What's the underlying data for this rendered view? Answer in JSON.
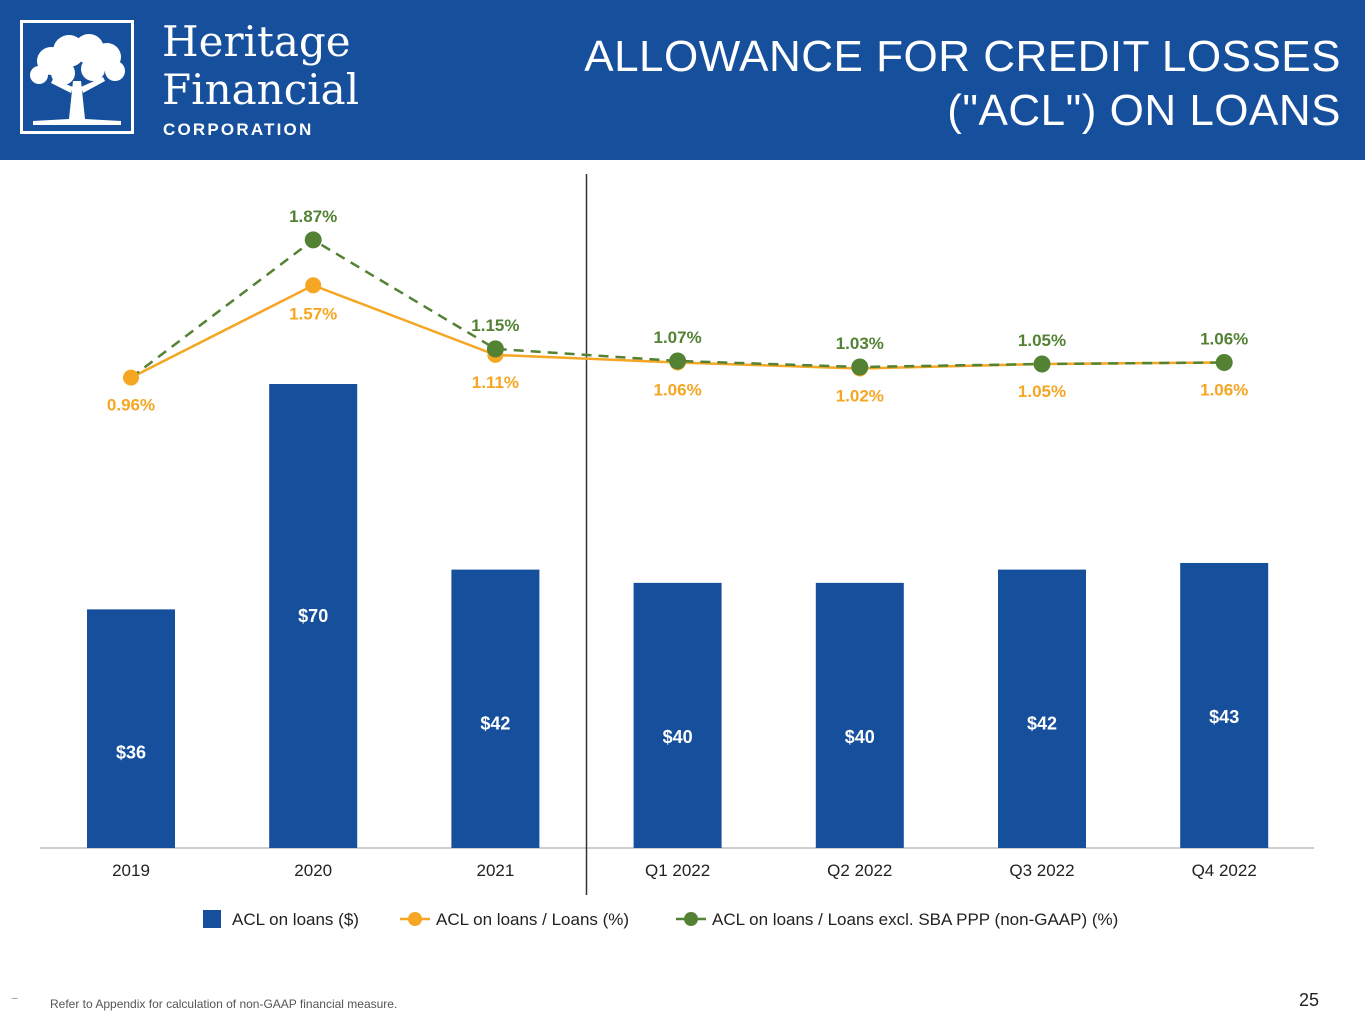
{
  "header": {
    "logo_line1": "Heritage",
    "logo_line2": "Financial",
    "logo_line3": "CORPORATION",
    "title": "ALLOWANCE FOR CREDIT LOSSES (\"ACL\") ON LOANS",
    "background_color": "#164f9c"
  },
  "chart_data": {
    "type": "bar",
    "title": "",
    "categories": [
      "2019",
      "2020",
      "2021",
      "Q1 2022",
      "Q2 2022",
      "Q3 2022",
      "Q4 2022"
    ],
    "series": [
      {
        "name": "ACL on loans ($)",
        "kind": "bar",
        "color": "#164f9c",
        "values": [
          36,
          70,
          42,
          40,
          40,
          42,
          43
        ],
        "labels": [
          "$36",
          "$70",
          "$42",
          "$40",
          "$40",
          "$42",
          "$43"
        ]
      },
      {
        "name": "ACL on loans / Loans (%)",
        "kind": "line",
        "color": "#f5a623",
        "values": [
          0.96,
          1.57,
          1.11,
          1.06,
          1.02,
          1.05,
          1.06
        ],
        "labels": [
          "0.96%",
          "1.57%",
          "1.11%",
          "1.06%",
          "1.02%",
          "1.05%",
          "1.06%"
        ]
      },
      {
        "name": "ACL on loans / Loans excl. SBA PPP (non-GAAP) (%)",
        "kind": "line",
        "dashed": true,
        "color": "#548235",
        "values": [
          0.96,
          1.87,
          1.15,
          1.07,
          1.03,
          1.05,
          1.06
        ],
        "labels": [
          "",
          "1.87%",
          "1.15%",
          "1.07%",
          "1.03%",
          "1.05%",
          "1.06%"
        ]
      }
    ],
    "bar_ylim": [
      0,
      100
    ],
    "line_ylim": [
      0,
      2.2
    ],
    "divider_after_index": 2,
    "legend_position": "bottom"
  },
  "footnote": "Refer to Appendix for calculation of non-GAAP financial measure.",
  "footnote_marker": "–",
  "page_number": "25"
}
